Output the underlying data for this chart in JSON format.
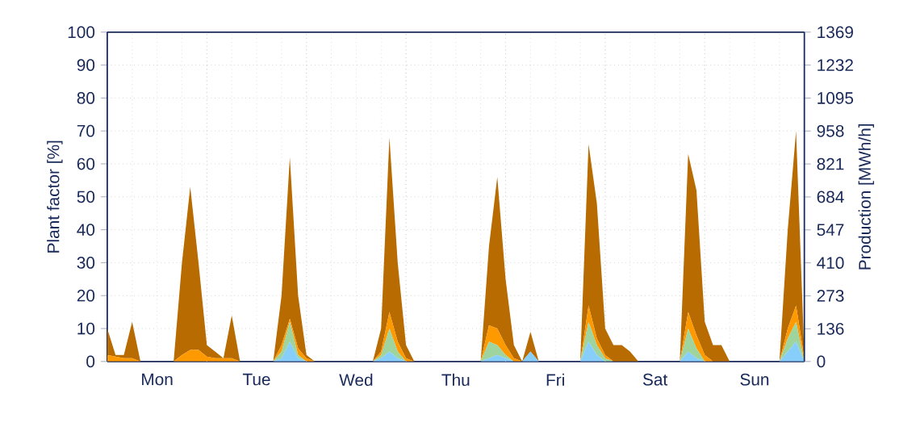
{
  "chart_data": {
    "type": "area",
    "stacked": true,
    "grid": true,
    "ylabel": "Plant factor [%]",
    "y2label": "Production [MWh/h]",
    "categories": [
      null,
      null,
      null,
      null,
      null,
      null,
      "Mon",
      null,
      null,
      null,
      null,
      null,
      null,
      null,
      null,
      null,
      null,
      null,
      "Tue",
      null,
      null,
      null,
      null,
      null,
      null,
      null,
      null,
      null,
      null,
      null,
      "Wed",
      null,
      null,
      null,
      null,
      null,
      null,
      null,
      null,
      null,
      null,
      null,
      "Thu",
      null,
      null,
      null,
      null,
      null,
      null,
      null,
      null,
      null,
      null,
      null,
      "Fri",
      null,
      null,
      null,
      null,
      null,
      null,
      null,
      null,
      null,
      null,
      null,
      "Sat",
      null,
      null,
      null,
      null,
      null,
      null,
      null,
      null,
      null,
      null,
      null,
      "Sun",
      null,
      null,
      null,
      null,
      null,
      null
    ],
    "series": [
      {
        "color": "#87cefa",
        "values": [
          0,
          0,
          0,
          0,
          0,
          0,
          0,
          0,
          0,
          0,
          0,
          0,
          0,
          0,
          0,
          0,
          0,
          0,
          0,
          0,
          0,
          1,
          6,
          1,
          0,
          0,
          0,
          0,
          0,
          0,
          0,
          0,
          0,
          1,
          3,
          1,
          0,
          0,
          0,
          0,
          0,
          0,
          0,
          0,
          0,
          0,
          1,
          2,
          1,
          0,
          0,
          3,
          0,
          0,
          0,
          0,
          0,
          0,
          6,
          2,
          0,
          0,
          0,
          0,
          0,
          0,
          0,
          0,
          0,
          0,
          3,
          1,
          0,
          0,
          0,
          0,
          0,
          0,
          0,
          0,
          0,
          0,
          3,
          6,
          0
        ]
      },
      {
        "color": "#9fd49f",
        "values": [
          0,
          0,
          0,
          0,
          0,
          0,
          0,
          0,
          0,
          0,
          0,
          0,
          0,
          0,
          0,
          0,
          0,
          0,
          0,
          0,
          0,
          2,
          6,
          1,
          0,
          0,
          0,
          0,
          0,
          0,
          0,
          0,
          0,
          1,
          7,
          2,
          0,
          0,
          0,
          0,
          0,
          0,
          0,
          0,
          0,
          0,
          5,
          3,
          1,
          0,
          0,
          0,
          0,
          0,
          0,
          0,
          0,
          0,
          6,
          3,
          1,
          0,
          0,
          0,
          0,
          0,
          0,
          0,
          0,
          0,
          7,
          3,
          0,
          0,
          0,
          0,
          0,
          0,
          0,
          0,
          0,
          0,
          4,
          6,
          0
        ]
      },
      {
        "color": "#ff9900",
        "values": [
          2,
          1.5,
          1,
          1,
          0,
          0,
          0,
          0,
          0,
          2,
          3.5,
          3.5,
          1.5,
          1,
          1,
          1,
          0,
          0,
          0,
          0,
          0,
          2,
          1,
          2,
          1,
          0,
          0,
          0,
          0,
          0,
          0,
          0,
          0,
          1,
          5,
          3,
          1,
          0,
          0,
          0,
          0,
          0,
          0,
          0,
          0,
          0,
          5,
          5,
          3,
          1,
          0,
          0,
          0,
          0,
          0,
          0,
          0,
          0,
          5,
          2,
          1,
          0,
          0,
          0,
          0,
          0,
          0,
          0,
          0,
          0,
          5,
          4,
          2,
          0,
          0,
          0,
          0,
          0,
          0,
          0,
          0,
          0,
          3,
          5,
          1
        ]
      },
      {
        "color": "#b86b00",
        "values": [
          8,
          0.5,
          1,
          11,
          0,
          0,
          0,
          0,
          0,
          28,
          49.5,
          26.5,
          3.5,
          2,
          0,
          13,
          0,
          0,
          0,
          0,
          0,
          15,
          49,
          16,
          1,
          0,
          0,
          0,
          0,
          0,
          0,
          0,
          0,
          7,
          53,
          24,
          4,
          0,
          0,
          0,
          0,
          0,
          0,
          0,
          0,
          0,
          24,
          46,
          20,
          4,
          0,
          6,
          0,
          0,
          0,
          0,
          0,
          0,
          49,
          41,
          8,
          5,
          5,
          3,
          0,
          0,
          0,
          0,
          0,
          0,
          48,
          44,
          10,
          5,
          5,
          0,
          0,
          0,
          0,
          0,
          0,
          0,
          30,
          53,
          1
        ]
      }
    ],
    "ylim": [
      0,
      100
    ],
    "yticks": [
      0,
      10,
      20,
      30,
      40,
      50,
      60,
      70,
      80,
      90,
      100
    ],
    "y2lim": [
      0,
      1369
    ],
    "y2ticks": [
      0,
      136,
      273,
      410,
      547,
      684,
      821,
      958,
      1095,
      1232,
      1369
    ]
  }
}
